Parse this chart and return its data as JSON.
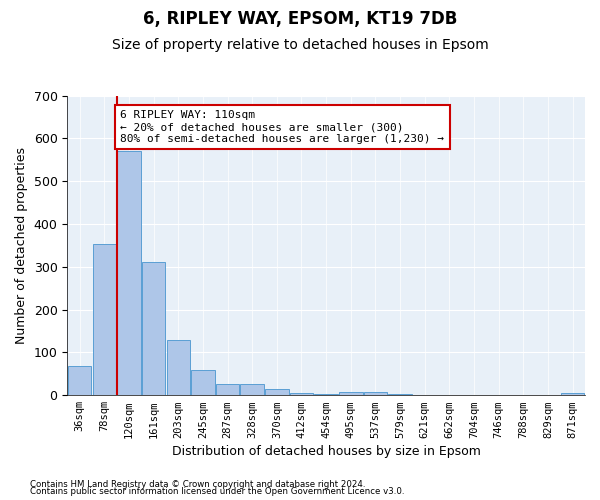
{
  "title": "6, RIPLEY WAY, EPSOM, KT19 7DB",
  "subtitle": "Size of property relative to detached houses in Epsom",
  "xlabel": "Distribution of detached houses by size in Epsom",
  "ylabel": "Number of detached properties",
  "bar_labels": [
    "36sqm",
    "78sqm",
    "120sqm",
    "161sqm",
    "203sqm",
    "245sqm",
    "287sqm",
    "328sqm",
    "370sqm",
    "412sqm",
    "454sqm",
    "495sqm",
    "537sqm",
    "579sqm",
    "621sqm",
    "662sqm",
    "704sqm",
    "746sqm",
    "788sqm",
    "829sqm",
    "871sqm"
  ],
  "bar_heights": [
    68,
    352,
    570,
    312,
    130,
    58,
    27,
    26,
    14,
    5,
    2,
    8,
    8,
    2,
    0,
    0,
    0,
    0,
    0,
    0,
    5
  ],
  "bar_color": "#aec6e8",
  "bar_edge_color": "#5a9fd4",
  "ylim": [
    0,
    700
  ],
  "yticks": [
    0,
    100,
    200,
    300,
    400,
    500,
    600,
    700
  ],
  "vline_x": 1.5,
  "vline_color": "#cc0000",
  "annotation_text": "6 RIPLEY WAY: 110sqm\n← 20% of detached houses are smaller (300)\n80% of semi-detached houses are larger (1,230) →",
  "annotation_box_color": "#ffffff",
  "annotation_box_edge": "#cc0000",
  "footer_line1": "Contains HM Land Registry data © Crown copyright and database right 2024.",
  "footer_line2": "Contains public sector information licensed under the Open Government Licence v3.0.",
  "plot_bg_color": "#e8f0f8",
  "title_fontsize": 12,
  "subtitle_fontsize": 10
}
